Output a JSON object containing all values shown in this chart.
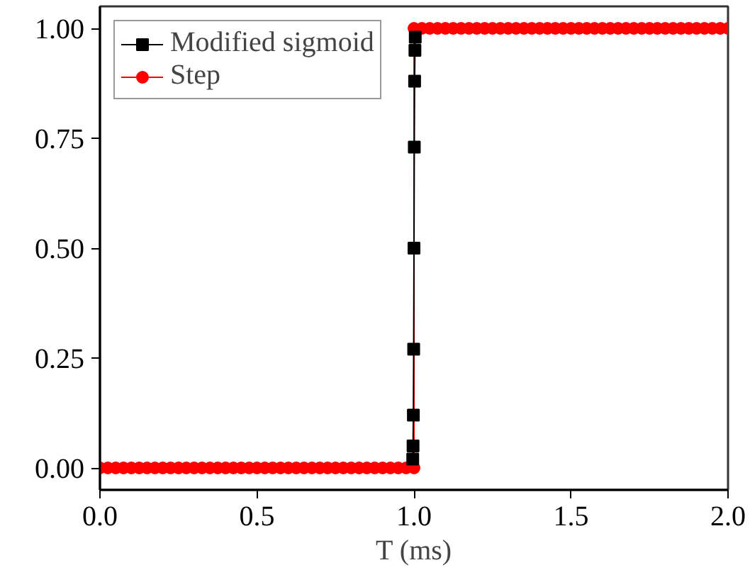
{
  "chart_data": {
    "type": "line",
    "xlabel": "T (ms)",
    "xlim": [
      0,
      2.0
    ],
    "ylim": [
      -0.05,
      1.05
    ],
    "xticks": [
      {
        "value": 0,
        "label": "0.0"
      },
      {
        "value": 0.5,
        "label": "0.5"
      },
      {
        "value": 1.0,
        "label": "1.0"
      },
      {
        "value": 1.5,
        "label": "1.5"
      },
      {
        "value": 2.0,
        "label": "2.0"
      }
    ],
    "yticks": [
      {
        "value": 0,
        "label": "0.00"
      },
      {
        "value": 0.25,
        "label": "0.25"
      },
      {
        "value": 0.5,
        "label": "0.50"
      },
      {
        "value": 0.75,
        "label": "0.75"
      },
      {
        "value": 1.0,
        "label": "1.00"
      }
    ],
    "grid": false,
    "legend": "top left",
    "series": [
      {
        "name": "Step",
        "color": "#ff0000",
        "marker": "circle",
        "x": [
          0,
          0.025,
          0.05,
          0.075,
          0.1,
          0.125,
          0.15,
          0.175,
          0.2,
          0.225,
          0.25,
          0.275,
          0.3,
          0.325,
          0.35,
          0.375,
          0.4,
          0.425,
          0.45,
          0.475,
          0.5,
          0.525,
          0.55,
          0.575,
          0.6,
          0.625,
          0.65,
          0.675,
          0.7,
          0.725,
          0.75,
          0.775,
          0.8,
          0.825,
          0.85,
          0.875,
          0.9,
          0.925,
          0.95,
          0.975,
          1.0,
          1.0,
          1.025,
          1.05,
          1.075,
          1.1,
          1.125,
          1.15,
          1.175,
          1.2,
          1.225,
          1.25,
          1.275,
          1.3,
          1.325,
          1.35,
          1.375,
          1.4,
          1.425,
          1.45,
          1.475,
          1.5,
          1.525,
          1.55,
          1.575,
          1.6,
          1.625,
          1.65,
          1.675,
          1.7,
          1.725,
          1.75,
          1.775,
          1.8,
          1.825,
          1.85,
          1.875,
          1.9,
          1.925,
          1.95,
          1.975,
          2.0
        ],
        "values": [
          0,
          0,
          0,
          0,
          0,
          0,
          0,
          0,
          0,
          0,
          0,
          0,
          0,
          0,
          0,
          0,
          0,
          0,
          0,
          0,
          0,
          0,
          0,
          0,
          0,
          0,
          0,
          0,
          0,
          0,
          0,
          0,
          0,
          0,
          0,
          0,
          0,
          0,
          0,
          0,
          0,
          1,
          1,
          1,
          1,
          1,
          1,
          1,
          1,
          1,
          1,
          1,
          1,
          1,
          1,
          1,
          1,
          1,
          1,
          1,
          1,
          1,
          1,
          1,
          1,
          1,
          1,
          1,
          1,
          1,
          1,
          1,
          1,
          1,
          1,
          1,
          1,
          1,
          1,
          1,
          1,
          1
        ]
      },
      {
        "name": "Modified sigmoid",
        "color": "#000000",
        "marker": "square",
        "x": [
          0.996,
          0.997,
          0.998,
          0.999,
          1.0,
          1.001,
          1.002,
          1.003,
          1.004
        ],
        "values": [
          0.02,
          0.05,
          0.12,
          0.27,
          0.5,
          0.73,
          0.88,
          0.95,
          0.98
        ]
      }
    ]
  }
}
